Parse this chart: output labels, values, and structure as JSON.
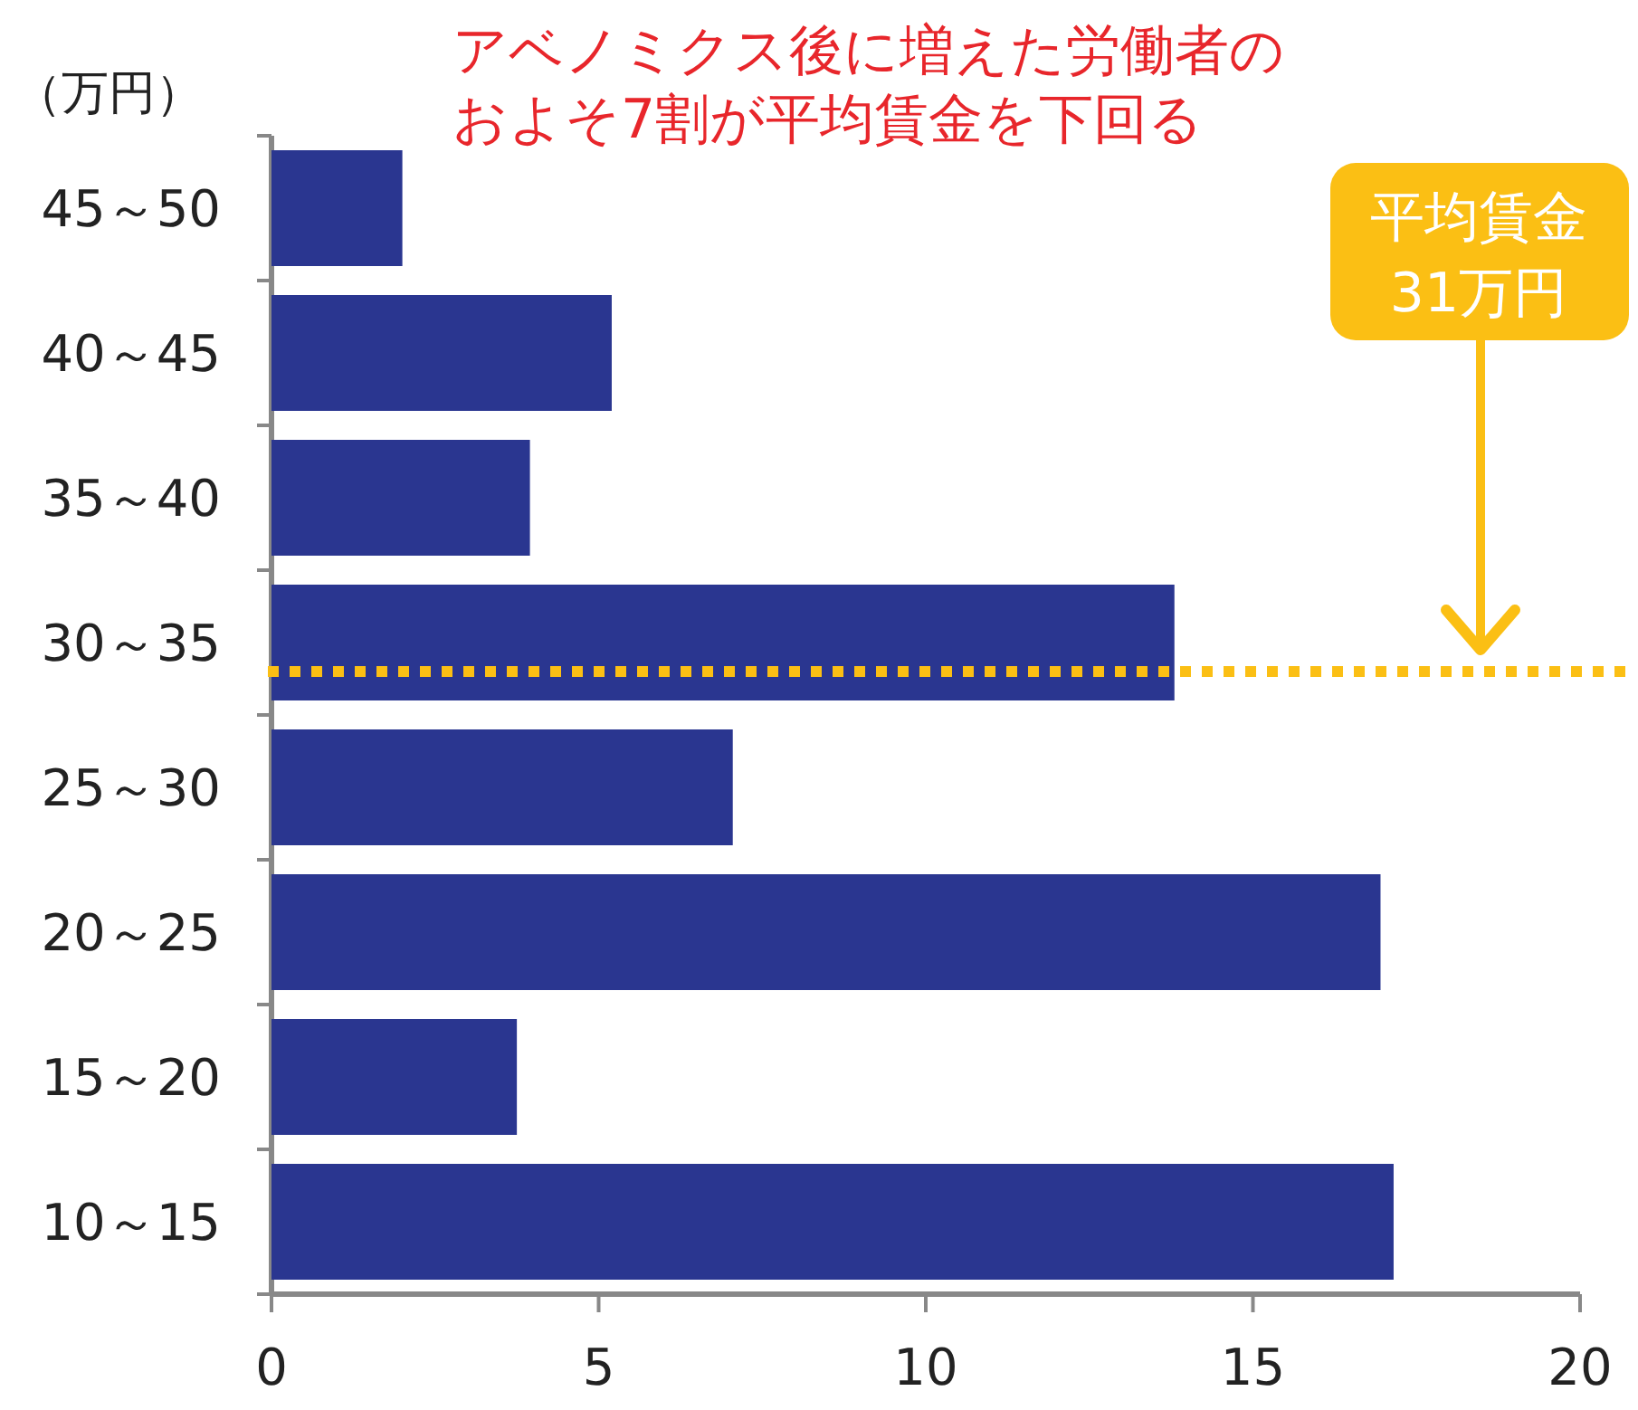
{
  "chart_data": {
    "type": "bar",
    "orientation": "horizontal",
    "title": "アベノミクス後に増えた労働者のおよそ7割が平均賃金を下回る",
    "annotations": [
      "平均賃金\n31万円"
    ],
    "ylabel": "（万円）",
    "categories": [
      "45～50",
      "40～45",
      "35～40",
      "30～35",
      "25～30",
      "20～25",
      "15～20",
      "10～15"
    ],
    "values": [
      2.0,
      5.2,
      3.95,
      13.8,
      7.05,
      16.95,
      3.75,
      17.15
    ],
    "color": "#2a3690",
    "xlim": [
      0,
      20
    ],
    "xticks": [
      0,
      5,
      10,
      15,
      20
    ],
    "grid": false,
    "ref_lines": [
      {
        "axis": "y",
        "value": "30～35",
        "color": "#fbbf14",
        "line_style": "dotted"
      }
    ]
  }
}
